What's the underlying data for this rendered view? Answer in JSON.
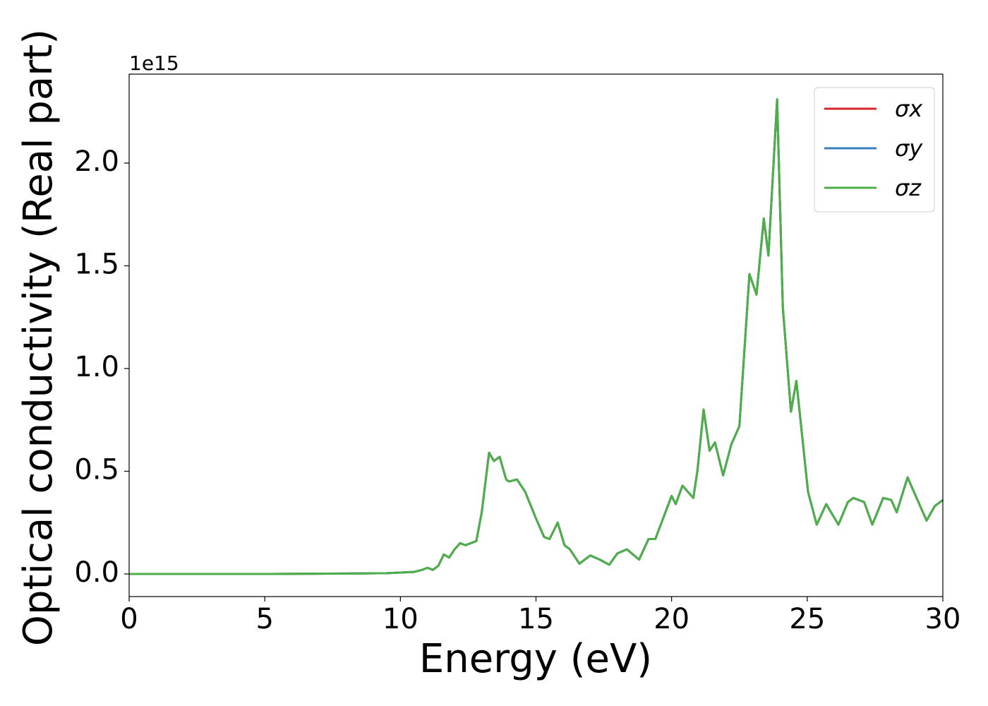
{
  "chart_data": {
    "type": "line",
    "xlabel": "Energy (eV)",
    "ylabel": "Optical conductivity (Real part)",
    "y_offset_text": "1e15",
    "x": [
      0,
      5,
      8,
      9.5,
      10.5,
      10.8,
      11,
      11.2,
      11.4,
      11.6,
      11.8,
      12,
      12.2,
      12.4,
      12.6,
      12.8,
      13,
      13.27,
      13.45,
      13.66,
      13.9,
      14.0,
      14.3,
      14.6,
      15.0,
      15.3,
      15.5,
      15.8,
      16.05,
      16.25,
      16.6,
      17.0,
      17.35,
      17.7,
      18.0,
      18.35,
      18.8,
      19.15,
      19.4,
      20.0,
      20.15,
      20.4,
      20.8,
      20.95,
      21.18,
      21.4,
      21.6,
      21.9,
      22.2,
      22.5,
      22.87,
      23.13,
      23.4,
      23.57,
      23.89,
      24.1,
      24.4,
      24.6,
      25.03,
      25.35,
      25.7,
      26.15,
      26.5,
      26.7,
      27.1,
      27.4,
      27.8,
      28.1,
      28.3,
      28.7,
      29.4,
      29.7,
      30
    ],
    "series": [
      {
        "name": "σx",
        "color": "#d62728",
        "values": [
          0,
          0,
          0.002,
          0.004,
          0.01,
          0.02,
          0.03,
          0.02,
          0.04,
          0.095,
          0.08,
          0.12,
          0.15,
          0.14,
          0.15,
          0.16,
          0.3,
          0.59,
          0.55,
          0.57,
          0.46,
          0.45,
          0.46,
          0.4,
          0.27,
          0.18,
          0.17,
          0.25,
          0.14,
          0.12,
          0.05,
          0.09,
          0.07,
          0.045,
          0.1,
          0.12,
          0.07,
          0.17,
          0.17,
          0.38,
          0.34,
          0.43,
          0.37,
          0.5,
          0.8,
          0.6,
          0.64,
          0.48,
          0.63,
          0.72,
          1.46,
          1.36,
          1.73,
          1.55,
          2.31,
          1.3,
          0.79,
          0.94,
          0.4,
          0.24,
          0.34,
          0.24,
          0.35,
          0.37,
          0.35,
          0.24,
          0.37,
          0.36,
          0.3,
          0.47,
          0.26,
          0.33,
          0.36
        ]
      },
      {
        "name": "σy",
        "color": "#3a7ebf",
        "values": [
          0,
          0,
          0.002,
          0.004,
          0.01,
          0.02,
          0.03,
          0.02,
          0.04,
          0.095,
          0.08,
          0.12,
          0.15,
          0.14,
          0.15,
          0.16,
          0.3,
          0.59,
          0.55,
          0.57,
          0.46,
          0.45,
          0.46,
          0.4,
          0.27,
          0.18,
          0.17,
          0.25,
          0.14,
          0.12,
          0.05,
          0.09,
          0.07,
          0.045,
          0.1,
          0.12,
          0.07,
          0.17,
          0.17,
          0.38,
          0.34,
          0.43,
          0.37,
          0.5,
          0.8,
          0.6,
          0.64,
          0.48,
          0.63,
          0.72,
          1.46,
          1.36,
          1.73,
          1.55,
          2.31,
          1.3,
          0.79,
          0.94,
          0.4,
          0.24,
          0.34,
          0.24,
          0.35,
          0.37,
          0.35,
          0.24,
          0.37,
          0.36,
          0.3,
          0.47,
          0.26,
          0.33,
          0.36
        ]
      },
      {
        "name": "σz",
        "color": "#4daf4a",
        "values": [
          0,
          0,
          0.002,
          0.004,
          0.01,
          0.02,
          0.03,
          0.02,
          0.04,
          0.095,
          0.08,
          0.12,
          0.15,
          0.14,
          0.15,
          0.16,
          0.3,
          0.59,
          0.55,
          0.57,
          0.46,
          0.45,
          0.46,
          0.4,
          0.27,
          0.18,
          0.17,
          0.25,
          0.14,
          0.12,
          0.05,
          0.09,
          0.07,
          0.045,
          0.1,
          0.12,
          0.07,
          0.17,
          0.17,
          0.38,
          0.34,
          0.43,
          0.37,
          0.5,
          0.8,
          0.6,
          0.64,
          0.48,
          0.63,
          0.72,
          1.46,
          1.36,
          1.73,
          1.55,
          2.31,
          1.3,
          0.79,
          0.94,
          0.4,
          0.24,
          0.34,
          0.24,
          0.35,
          0.37,
          0.35,
          0.24,
          0.37,
          0.36,
          0.3,
          0.47,
          0.26,
          0.33,
          0.36
        ]
      }
    ],
    "xlim": [
      0,
      30
    ],
    "xticks": [
      0,
      5,
      10,
      15,
      20,
      25,
      30
    ],
    "ylim": [
      -0.11,
      2.433
    ],
    "yticks": [
      {
        "value": 0,
        "label": "0.0"
      },
      {
        "value": 0.5,
        "label": "0.5"
      },
      {
        "value": 1,
        "label": "1.0"
      },
      {
        "value": 1.5,
        "label": "1.5"
      },
      {
        "value": 2,
        "label": "2.0"
      }
    ],
    "grid": false,
    "legend": "upper right"
  }
}
